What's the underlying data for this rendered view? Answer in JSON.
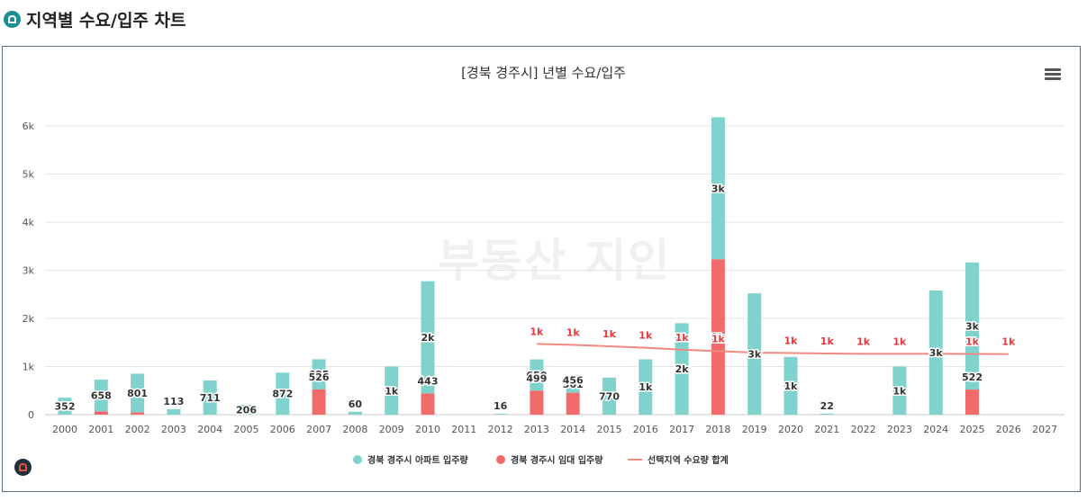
{
  "page": {
    "title": "지역별 수요/입주 차트"
  },
  "watermark": "부동산 지인",
  "colors": {
    "apt": "#7fd3cc",
    "rent": "#f26b6b",
    "demand": "#f08a82",
    "grid": "#e6e6e6",
    "label": "#333333"
  },
  "legend": {
    "items": [
      {
        "label": "경북 경주시 아파트 입주량",
        "color": "#7fd3cc",
        "shape": "dot"
      },
      {
        "label": "경북 경주시 임대 입주량",
        "color": "#f26b6b",
        "shape": "dot"
      },
      {
        "label": "선택지역 수요량 합계",
        "color": "#f08a82",
        "shape": "line"
      }
    ]
  },
  "chart_data": {
    "type": "bar",
    "title": "[경북 경주시] 년별 수요/입주",
    "categories": [
      "2000",
      "2001",
      "2002",
      "2003",
      "2004",
      "2005",
      "2006",
      "2007",
      "2008",
      "2009",
      "2010",
      "2011",
      "2012",
      "2013",
      "2014",
      "2015",
      "2016",
      "2017",
      "2018",
      "2019",
      "2020",
      "2021",
      "2022",
      "2023",
      "2024",
      "2025",
      "2026",
      "2027"
    ],
    "ylim": [
      0,
      6000
    ],
    "yticks": [
      0,
      1000,
      2000,
      3000,
      4000,
      5000,
      6000
    ],
    "ytick_labels": [
      "0",
      "1k",
      "2k",
      "3k",
      "4k",
      "5k",
      "6k"
    ],
    "stacked": true,
    "series": [
      {
        "name": "경북 경주시 아파트 입주량",
        "type": "bar",
        "values": [
          352,
          658,
          801,
          113,
          711,
          206,
          872,
          625,
          60,
          1000,
          2330,
          0,
          16,
          650,
          361,
          770,
          1150,
          1900,
          2950,
          2520,
          1200,
          22,
          0,
          1000,
          2580,
          2640,
          0,
          0
        ],
        "labels": [
          "352",
          "658",
          "801",
          "113",
          "711",
          "206",
          "872",
          "625",
          "60",
          "1k",
          "2k",
          "",
          "16",
          "650",
          "361",
          "770",
          "1k",
          "2k",
          "3k",
          "3k",
          "1k",
          "22",
          "",
          "1k",
          "3k",
          "3k",
          "",
          ""
        ]
      },
      {
        "name": "경북 경주시 임대 입주량",
        "type": "bar",
        "values": [
          0,
          70,
          50,
          0,
          0,
          0,
          0,
          526,
          0,
          0,
          443,
          0,
          0,
          499,
          456,
          0,
          0,
          0,
          3230,
          0,
          0,
          0,
          0,
          0,
          0,
          522,
          0,
          0
        ],
        "labels": [
          "",
          "",
          "",
          "",
          "",
          "",
          "",
          "526",
          "",
          "",
          "443",
          "",
          "",
          "499",
          "456",
          "",
          "",
          "",
          "3k",
          "",
          "",
          "",
          "",
          "",
          "",
          "522",
          "",
          ""
        ]
      },
      {
        "name": "선택지역 수요량 합계",
        "type": "line",
        "values": [
          null,
          null,
          null,
          null,
          null,
          null,
          null,
          null,
          null,
          null,
          null,
          null,
          null,
          1470,
          1450,
          1420,
          1390,
          1350,
          1320,
          1290,
          1280,
          1270,
          1265,
          1265,
          1265,
          1262,
          1260,
          null
        ],
        "labels": [
          "",
          "",
          "",
          "",
          "",
          "",
          "",
          "",
          "",
          "",
          "",
          "",
          "",
          "1k",
          "1k",
          "1k",
          "1k",
          "1k",
          "1k",
          "",
          "1k",
          "1k",
          "1k",
          "1k",
          "",
          "1k",
          "1k",
          ""
        ]
      }
    ]
  }
}
